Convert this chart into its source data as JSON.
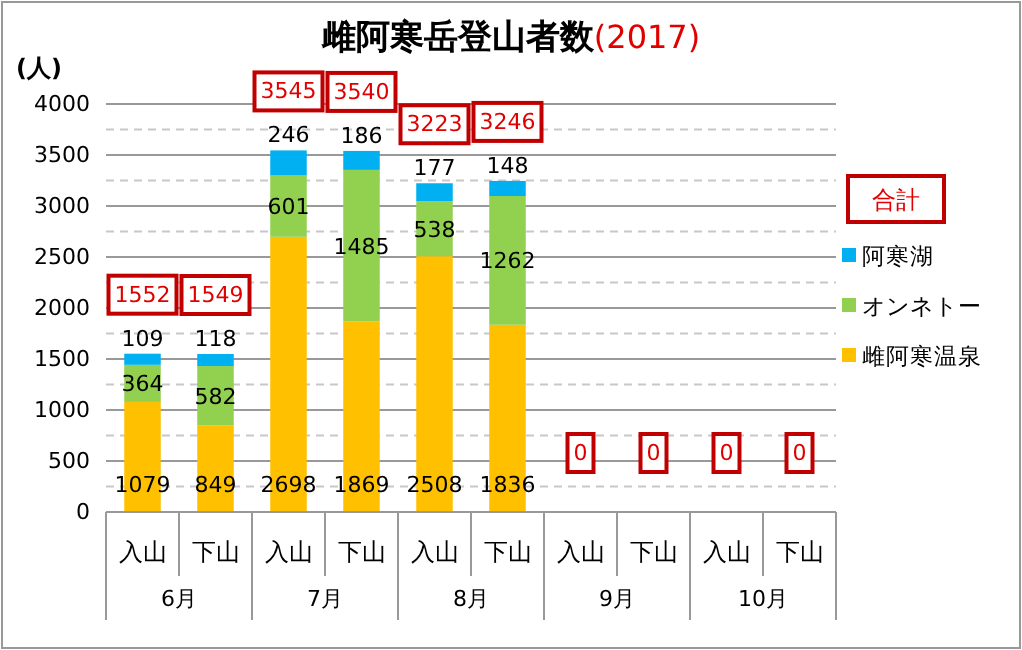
{
  "chart_data": {
    "type": "bar",
    "title": "雌阿寒岳登山者数",
    "subtitle": "(2017)",
    "ylabel": "(人)",
    "stacked": true,
    "legend": "right",
    "legend_title": "合計",
    "grid": "y",
    "categories": [
      "入山",
      "下山",
      "入山",
      "下山",
      "入山",
      "下山",
      "入山",
      "下山",
      "入山",
      "下山"
    ],
    "annotations": [
      "6月",
      "7月",
      "8月",
      "9月",
      "10月"
    ],
    "ylim": [
      0,
      4000
    ],
    "yticks": [
      0,
      {
        "value": 250,
        "label": null
      },
      500,
      {
        "value": 750,
        "label": null
      },
      1000,
      {
        "value": 1250,
        "label": null
      },
      1500,
      {
        "value": 1750,
        "label": null
      },
      2000,
      {
        "value": 2250,
        "label": null
      },
      2500,
      {
        "value": 2750,
        "label": null
      },
      3000,
      {
        "value": 3250,
        "label": null
      },
      3500,
      {
        "value": 3750,
        "label": null
      },
      4000
    ],
    "series": [
      {
        "name": "雌阿寒温泉",
        "color": "#ffc000",
        "values": [
          1079,
          849,
          2698,
          1869,
          2508,
          1836,
          0,
          0,
          0,
          0
        ],
        "value_labels": [
          "1079",
          "849",
          "2698",
          "1869",
          "2508",
          "1836",
          null,
          null,
          null,
          null
        ]
      },
      {
        "name": "オンネトー",
        "color": "#92d050",
        "values": [
          364,
          582,
          601,
          1485,
          538,
          1262,
          0,
          0,
          0,
          0
        ],
        "value_labels": [
          "364",
          "582",
          "601",
          "1485",
          "538",
          "1262",
          null,
          null,
          null,
          null
        ]
      },
      {
        "name": "阿寒湖",
        "color": "#00b0f0",
        "values": [
          109,
          118,
          246,
          186,
          177,
          148,
          0,
          0,
          0,
          0
        ],
        "value_labels": [
          "109",
          "118",
          "246",
          "186",
          "177",
          "148",
          null,
          null,
          null,
          null
        ]
      }
    ],
    "totals": [
      "1552",
      "1549",
      "3545",
      "3540",
      "3223",
      "3246",
      "0",
      "0",
      "0",
      "0"
    ]
  }
}
